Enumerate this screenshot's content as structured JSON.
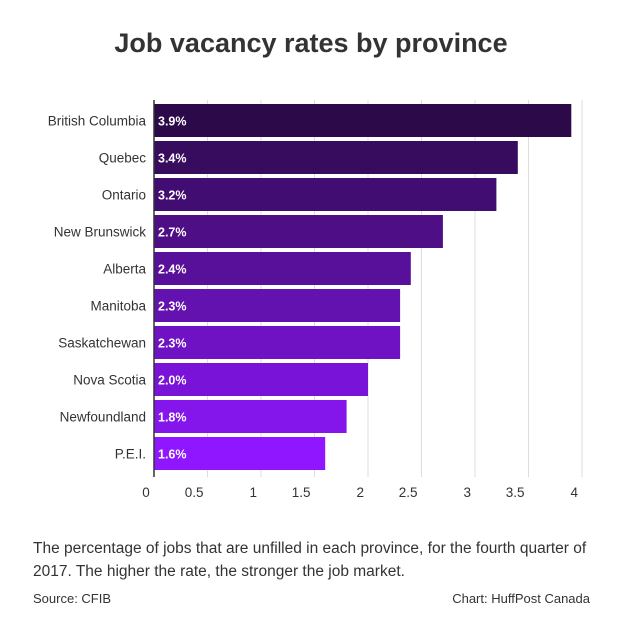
{
  "chart_data": {
    "type": "bar",
    "orientation": "horizontal",
    "title": "Job vacancy rates by province",
    "categories": [
      "British Columbia",
      "Quebec",
      "Ontario",
      "New Brunswick",
      "Alberta",
      "Manitoba",
      "Saskatchewan",
      "Nova Scotia",
      "Newfoundland",
      "P.E.I."
    ],
    "values": [
      3.9,
      3.4,
      3.2,
      2.7,
      2.4,
      2.3,
      2.3,
      2.0,
      1.8,
      1.6
    ],
    "data_labels": [
      "3.9%",
      "3.4%",
      "3.2%",
      "2.7%",
      "2.4%",
      "2.3%",
      "2.3%",
      "2.0%",
      "1.8%",
      "1.6%"
    ],
    "xlim": [
      0,
      4
    ],
    "xticks": [
      0,
      0.5,
      1,
      1.5,
      2,
      2.5,
      3,
      3.5,
      4
    ],
    "xtick_labels": [
      "0",
      "0.5",
      "1",
      "1.5",
      "2",
      "2.5",
      "3",
      "3.5",
      "4"
    ],
    "xlabel": "",
    "ylabel": "",
    "grid": "vertical",
    "legend": "none",
    "colors": {
      "bar_start": "#2c0a4a",
      "bar_end": "#8f16ff",
      "grid": "#dddddd",
      "axis": "#333333",
      "text": "#333333"
    }
  },
  "description": "The percentage of jobs that are unfilled in each province, for the fourth quarter of 2017. The higher the rate, the stronger the job market.",
  "source": "Source: CFIB",
  "credit": "Chart: HuffPost Canada"
}
